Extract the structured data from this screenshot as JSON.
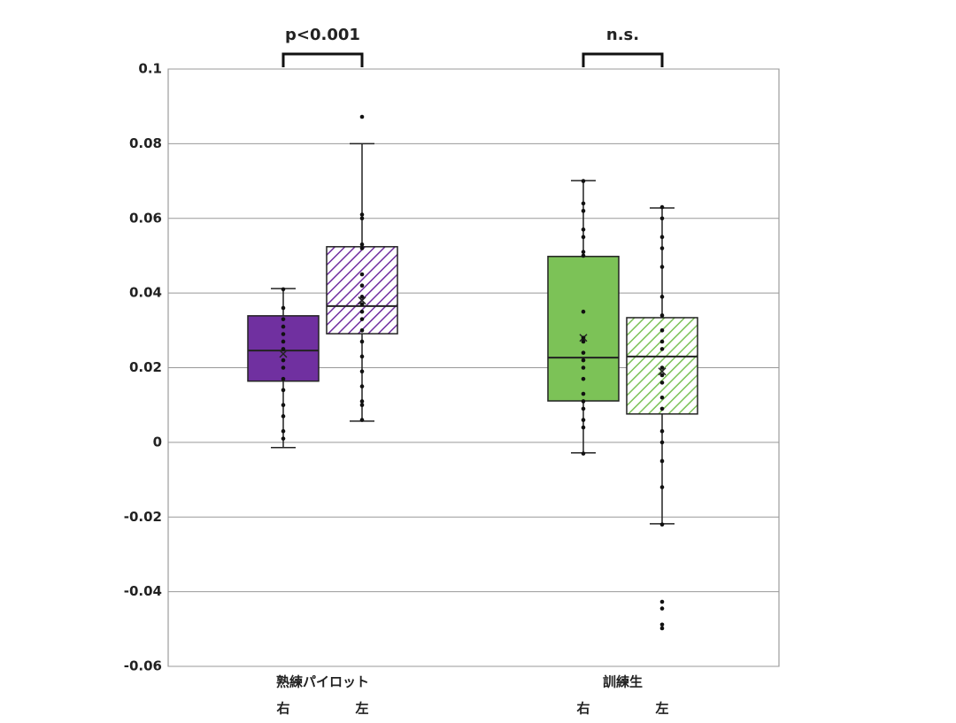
{
  "chart_data": {
    "type": "box",
    "ylim": [
      -0.06,
      0.1
    ],
    "yticks": [
      -0.06,
      -0.04,
      -0.02,
      0,
      0.02,
      0.04,
      0.06,
      0.08,
      0.1
    ],
    "grid": true,
    "groups": [
      {
        "name": "熟練パイロット",
        "comparison": "p<0.001",
        "boxes": [
          {
            "label": "右",
            "color": "#7030a0",
            "hatch": false,
            "whisker_low": -0.0014,
            "q1": 0.0164,
            "median": 0.0246,
            "q3": 0.0339,
            "whisker_high": 0.0412,
            "mean": 0.0237,
            "points": [
              0.041,
              0.036,
              0.033,
              0.031,
              0.029,
              0.027,
              0.025,
              0.022,
              0.02,
              0.017,
              0.014,
              0.01,
              0.007,
              0.003,
              0.001
            ],
            "outliers": []
          },
          {
            "label": "左",
            "color": "#7030a0",
            "hatch": true,
            "whisker_low": 0.0057,
            "q1": 0.0291,
            "median": 0.0365,
            "q3": 0.0524,
            "whisker_high": 0.08,
            "mean": 0.038,
            "points": [
              0.061,
              0.06,
              0.053,
              0.052,
              0.045,
              0.042,
              0.039,
              0.037,
              0.035,
              0.033,
              0.03,
              0.027,
              0.023,
              0.019,
              0.015,
              0.011,
              0.01,
              0.006
            ],
            "outliers": [
              0.0872
            ]
          }
        ]
      },
      {
        "name": "訓練生",
        "comparison": "n.s.",
        "boxes": [
          {
            "label": "右",
            "color": "#7cc257",
            "hatch": false,
            "whisker_low": -0.0028,
            "q1": 0.0111,
            "median": 0.0227,
            "q3": 0.0498,
            "whisker_high": 0.0701,
            "mean": 0.028,
            "points": [
              0.07,
              0.064,
              0.062,
              0.057,
              0.055,
              0.051,
              0.05,
              0.035,
              0.028,
              0.027,
              0.024,
              0.022,
              0.02,
              0.017,
              0.013,
              0.011,
              0.009,
              0.006,
              0.004,
              -0.003
            ],
            "outliers": []
          },
          {
            "label": "左",
            "color": "#7cc257",
            "hatch": true,
            "whisker_low": -0.0218,
            "q1": 0.0076,
            "median": 0.023,
            "q3": 0.0334,
            "whisker_high": 0.0628,
            "mean": 0.019,
            "points": [
              0.063,
              0.06,
              0.055,
              0.052,
              0.047,
              0.039,
              0.034,
              0.03,
              0.027,
              0.025,
              0.02,
              0.018,
              0.016,
              0.012,
              0.009,
              0.003,
              0,
              -0.005,
              -0.012,
              -0.022
            ],
            "outliers": [
              -0.0427,
              -0.0445,
              -0.0488,
              -0.0498
            ]
          }
        ]
      }
    ]
  }
}
